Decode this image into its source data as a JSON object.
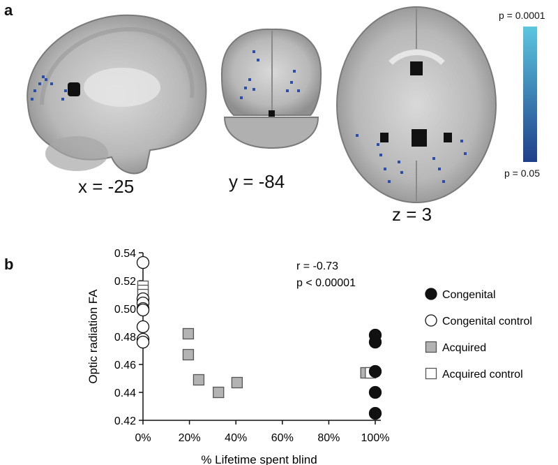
{
  "panel_a": {
    "label": "a",
    "slices": [
      {
        "coord": "x = -25"
      },
      {
        "coord": "y = -84"
      },
      {
        "coord": "z = 3"
      }
    ],
    "colorbar": {
      "top_label": "p = 0.0001",
      "bottom_label": "p = 0.05",
      "top_color": "#5cc6e0",
      "bottom_color": "#1e3f8a"
    }
  },
  "panel_b": {
    "label": "b",
    "stats": {
      "r": "r = -0.73",
      "p": "p < 0.00001"
    }
  },
  "chart_data": {
    "type": "scatter",
    "xlabel": "% Lifetime spent blind",
    "ylabel": "Optic radiation FA",
    "x_ticks": [
      "0%",
      "20%",
      "40%",
      "60%",
      "80%",
      "100%"
    ],
    "y_ticks": [
      "0.42",
      "0.44",
      "0.46",
      "0.48",
      "0.50",
      "0.52",
      "0.54"
    ],
    "xlim": [
      0,
      100
    ],
    "ylim": [
      0.42,
      0.54
    ],
    "legend_position": "right",
    "series": [
      {
        "name": "Congenital",
        "marker": "circle",
        "fill": "#111111",
        "points": [
          [
            100,
            0.481
          ],
          [
            100,
            0.476
          ],
          [
            100,
            0.455
          ],
          [
            100,
            0.44
          ],
          [
            100,
            0.425
          ]
        ]
      },
      {
        "name": "Congenital control",
        "marker": "circle",
        "fill": "#ffffff",
        "points": [
          [
            0,
            0.533
          ],
          [
            0,
            0.507
          ],
          [
            0,
            0.504
          ],
          [
            0,
            0.5
          ],
          [
            0,
            0.499
          ],
          [
            0,
            0.487
          ],
          [
            0,
            0.478
          ],
          [
            0,
            0.476
          ]
        ]
      },
      {
        "name": "Acquired",
        "marker": "square",
        "fill": "#b3b3b3",
        "points": [
          [
            19.5,
            0.482
          ],
          [
            19.5,
            0.467
          ],
          [
            24,
            0.449
          ],
          [
            32.5,
            0.44
          ],
          [
            40.5,
            0.447
          ],
          [
            96,
            0.454
          ]
        ]
      },
      {
        "name": "Acquired control",
        "marker": "square",
        "fill": "#ffffff",
        "points": [
          [
            0,
            0.516
          ],
          [
            0,
            0.513
          ],
          [
            0,
            0.51
          ],
          [
            98,
            0.454
          ]
        ]
      }
    ]
  }
}
